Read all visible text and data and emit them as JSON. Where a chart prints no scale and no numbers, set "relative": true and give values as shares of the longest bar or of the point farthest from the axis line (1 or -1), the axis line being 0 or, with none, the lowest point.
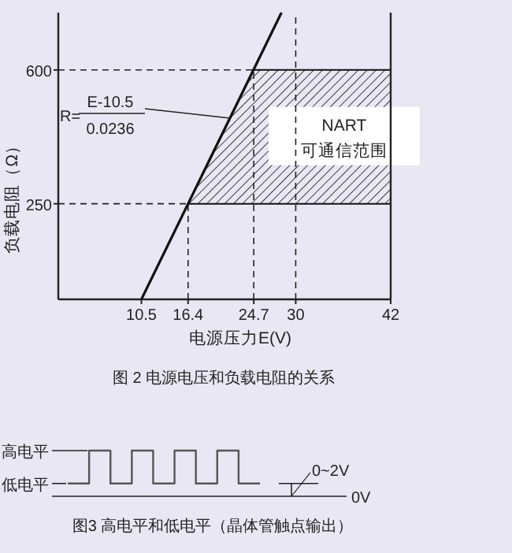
{
  "chart_data": [
    {
      "type": "line",
      "title": "图 2  电源电压和负载电阻的关系",
      "xlabel": "电源压力E(V)",
      "ylabel": "负载电阻（Ω）",
      "series": [
        {
          "color": "#111111",
          "x": [
            10.5,
            28.2
          ],
          "values": [
            0,
            750
          ]
        }
      ],
      "xlim": [
        0,
        42
      ],
      "ylim": [
        0,
        750
      ],
      "xticks": [
        10.5,
        16.4,
        24.7,
        30,
        42
      ],
      "yticks": [
        250,
        600
      ],
      "ref_lines": [
        {
          "axis": "y",
          "value": 600,
          "line_style": "dashed"
        },
        {
          "axis": "y",
          "value": 250,
          "line_style": "dashed"
        },
        {
          "axis": "x",
          "value": 16.4,
          "line_style": "dashed"
        },
        {
          "axis": "x",
          "value": 24.7,
          "line_style": "dashed"
        },
        {
          "axis": "x",
          "value": 30,
          "line_style": "dashed"
        }
      ],
      "bands": [
        {
          "axis": "y",
          "from": 250,
          "to": 600,
          "label": "NART可通信范围",
          "color": "#111111"
        }
      ],
      "annotations": [
        "R=",
        {
          "text": "E-10.5",
          "x": 21.7,
          "y": 474
        },
        "0.0236"
      ],
      "grid": false
    },
    {
      "type": "step",
      "title": "图3 高电平和低电平（晶体管触点输出）",
      "relative": true,
      "categories": [
        null,
        null,
        null,
        null,
        null,
        null,
        null,
        null,
        null,
        null
      ],
      "series": [
        {
          "color": "#555555",
          "values": [
            0.28,
            1,
            0.28,
            1,
            0.28,
            1,
            0.28,
            1,
            0.28,
            0.28
          ]
        }
      ],
      "annotations": [
        "高电平",
        "低电平",
        "0~2V",
        "0V"
      ],
      "grid": false
    }
  ]
}
